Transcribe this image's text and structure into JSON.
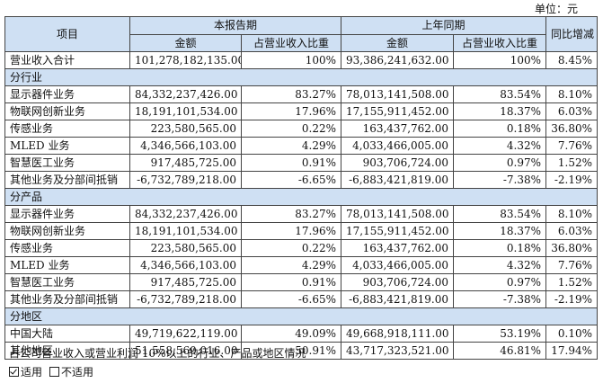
{
  "unit_label": "单位：元",
  "headers": {
    "item": "项目",
    "current_period": "本报告期",
    "prior_period": "上年同期",
    "yoy": "同比增减",
    "amount": "金额",
    "ratio": "占营业收入比重"
  },
  "total": {
    "label": "营业收入合计",
    "current_amount": "101,278,182,135.00",
    "current_ratio": "100%",
    "prior_amount": "93,386,241,632.00",
    "prior_ratio": "100%",
    "yoy": "8.45%"
  },
  "sections": [
    {
      "title": "分行业",
      "rows": [
        {
          "label": "显示器件业务",
          "current_amount": "84,332,237,426.00",
          "current_ratio": "83.27%",
          "prior_amount": "78,013,141,508.00",
          "prior_ratio": "83.54%",
          "yoy": "8.10%"
        },
        {
          "label": "物联网创新业务",
          "current_amount": "18,191,101,534.00",
          "current_ratio": "17.96%",
          "prior_amount": "17,155,911,452.00",
          "prior_ratio": "18.37%",
          "yoy": "6.03%"
        },
        {
          "label": "传感业务",
          "current_amount": "223,580,565.00",
          "current_ratio": "0.22%",
          "prior_amount": "163,437,762.00",
          "prior_ratio": "0.18%",
          "yoy": "36.80%"
        },
        {
          "label": "MLED 业务",
          "current_amount": "4,346,566,103.00",
          "current_ratio": "4.29%",
          "prior_amount": "4,033,466,005.00",
          "prior_ratio": "4.32%",
          "yoy": "7.76%"
        },
        {
          "label": "智慧医工业务",
          "current_amount": "917,485,725.00",
          "current_ratio": "0.91%",
          "prior_amount": "903,706,724.00",
          "prior_ratio": "0.97%",
          "yoy": "1.52%"
        },
        {
          "label": "其他业务及分部间抵销",
          "current_amount": "-6,732,789,218.00",
          "current_ratio": "-6.65%",
          "prior_amount": "-6,883,421,819.00",
          "prior_ratio": "-7.38%",
          "yoy": "-2.19%"
        }
      ]
    },
    {
      "title": "分产品",
      "rows": [
        {
          "label": "显示器件业务",
          "current_amount": "84,332,237,426.00",
          "current_ratio": "83.27%",
          "prior_amount": "78,013,141,508.00",
          "prior_ratio": "83.54%",
          "yoy": "8.10%"
        },
        {
          "label": "物联网创新业务",
          "current_amount": "18,191,101,534.00",
          "current_ratio": "17.96%",
          "prior_amount": "17,155,911,452.00",
          "prior_ratio": "18.37%",
          "yoy": "6.03%"
        },
        {
          "label": "传感业务",
          "current_amount": "223,580,565.00",
          "current_ratio": "0.22%",
          "prior_amount": "163,437,762.00",
          "prior_ratio": "0.18%",
          "yoy": "36.80%"
        },
        {
          "label": "MLED 业务",
          "current_amount": "4,346,566,103.00",
          "current_ratio": "4.29%",
          "prior_amount": "4,033,466,005.00",
          "prior_ratio": "4.32%",
          "yoy": "7.76%"
        },
        {
          "label": "智慧医工业务",
          "current_amount": "917,485,725.00",
          "current_ratio": "0.91%",
          "prior_amount": "903,706,724.00",
          "prior_ratio": "0.97%",
          "yoy": "1.52%"
        },
        {
          "label": "其他业务及分部间抵销",
          "current_amount": "-6,732,789,218.00",
          "current_ratio": "-6.65%",
          "prior_amount": "-6,883,421,819.00",
          "prior_ratio": "-7.38%",
          "yoy": "-2.19%"
        }
      ]
    },
    {
      "title": "分地区",
      "rows": [
        {
          "label": "中国大陆",
          "current_amount": "49,719,622,119.00",
          "current_ratio": "49.09%",
          "prior_amount": "49,668,918,111.00",
          "prior_ratio": "53.19%",
          "yoy": "0.10%"
        },
        {
          "label": "其他地区",
          "current_amount": "51,558,560,016.00",
          "current_ratio": "50.91%",
          "prior_amount": "43,717,323,521.00",
          "prior_ratio": "46.81%",
          "yoy": "17.94%"
        }
      ]
    }
  ],
  "note": "占公司营业收入或营业利润 10%以上的行业、产品或地区情况",
  "options": {
    "applicable": {
      "label": "适用",
      "checked": true
    },
    "not_applicable": {
      "label": "不适用",
      "checked": false
    }
  }
}
